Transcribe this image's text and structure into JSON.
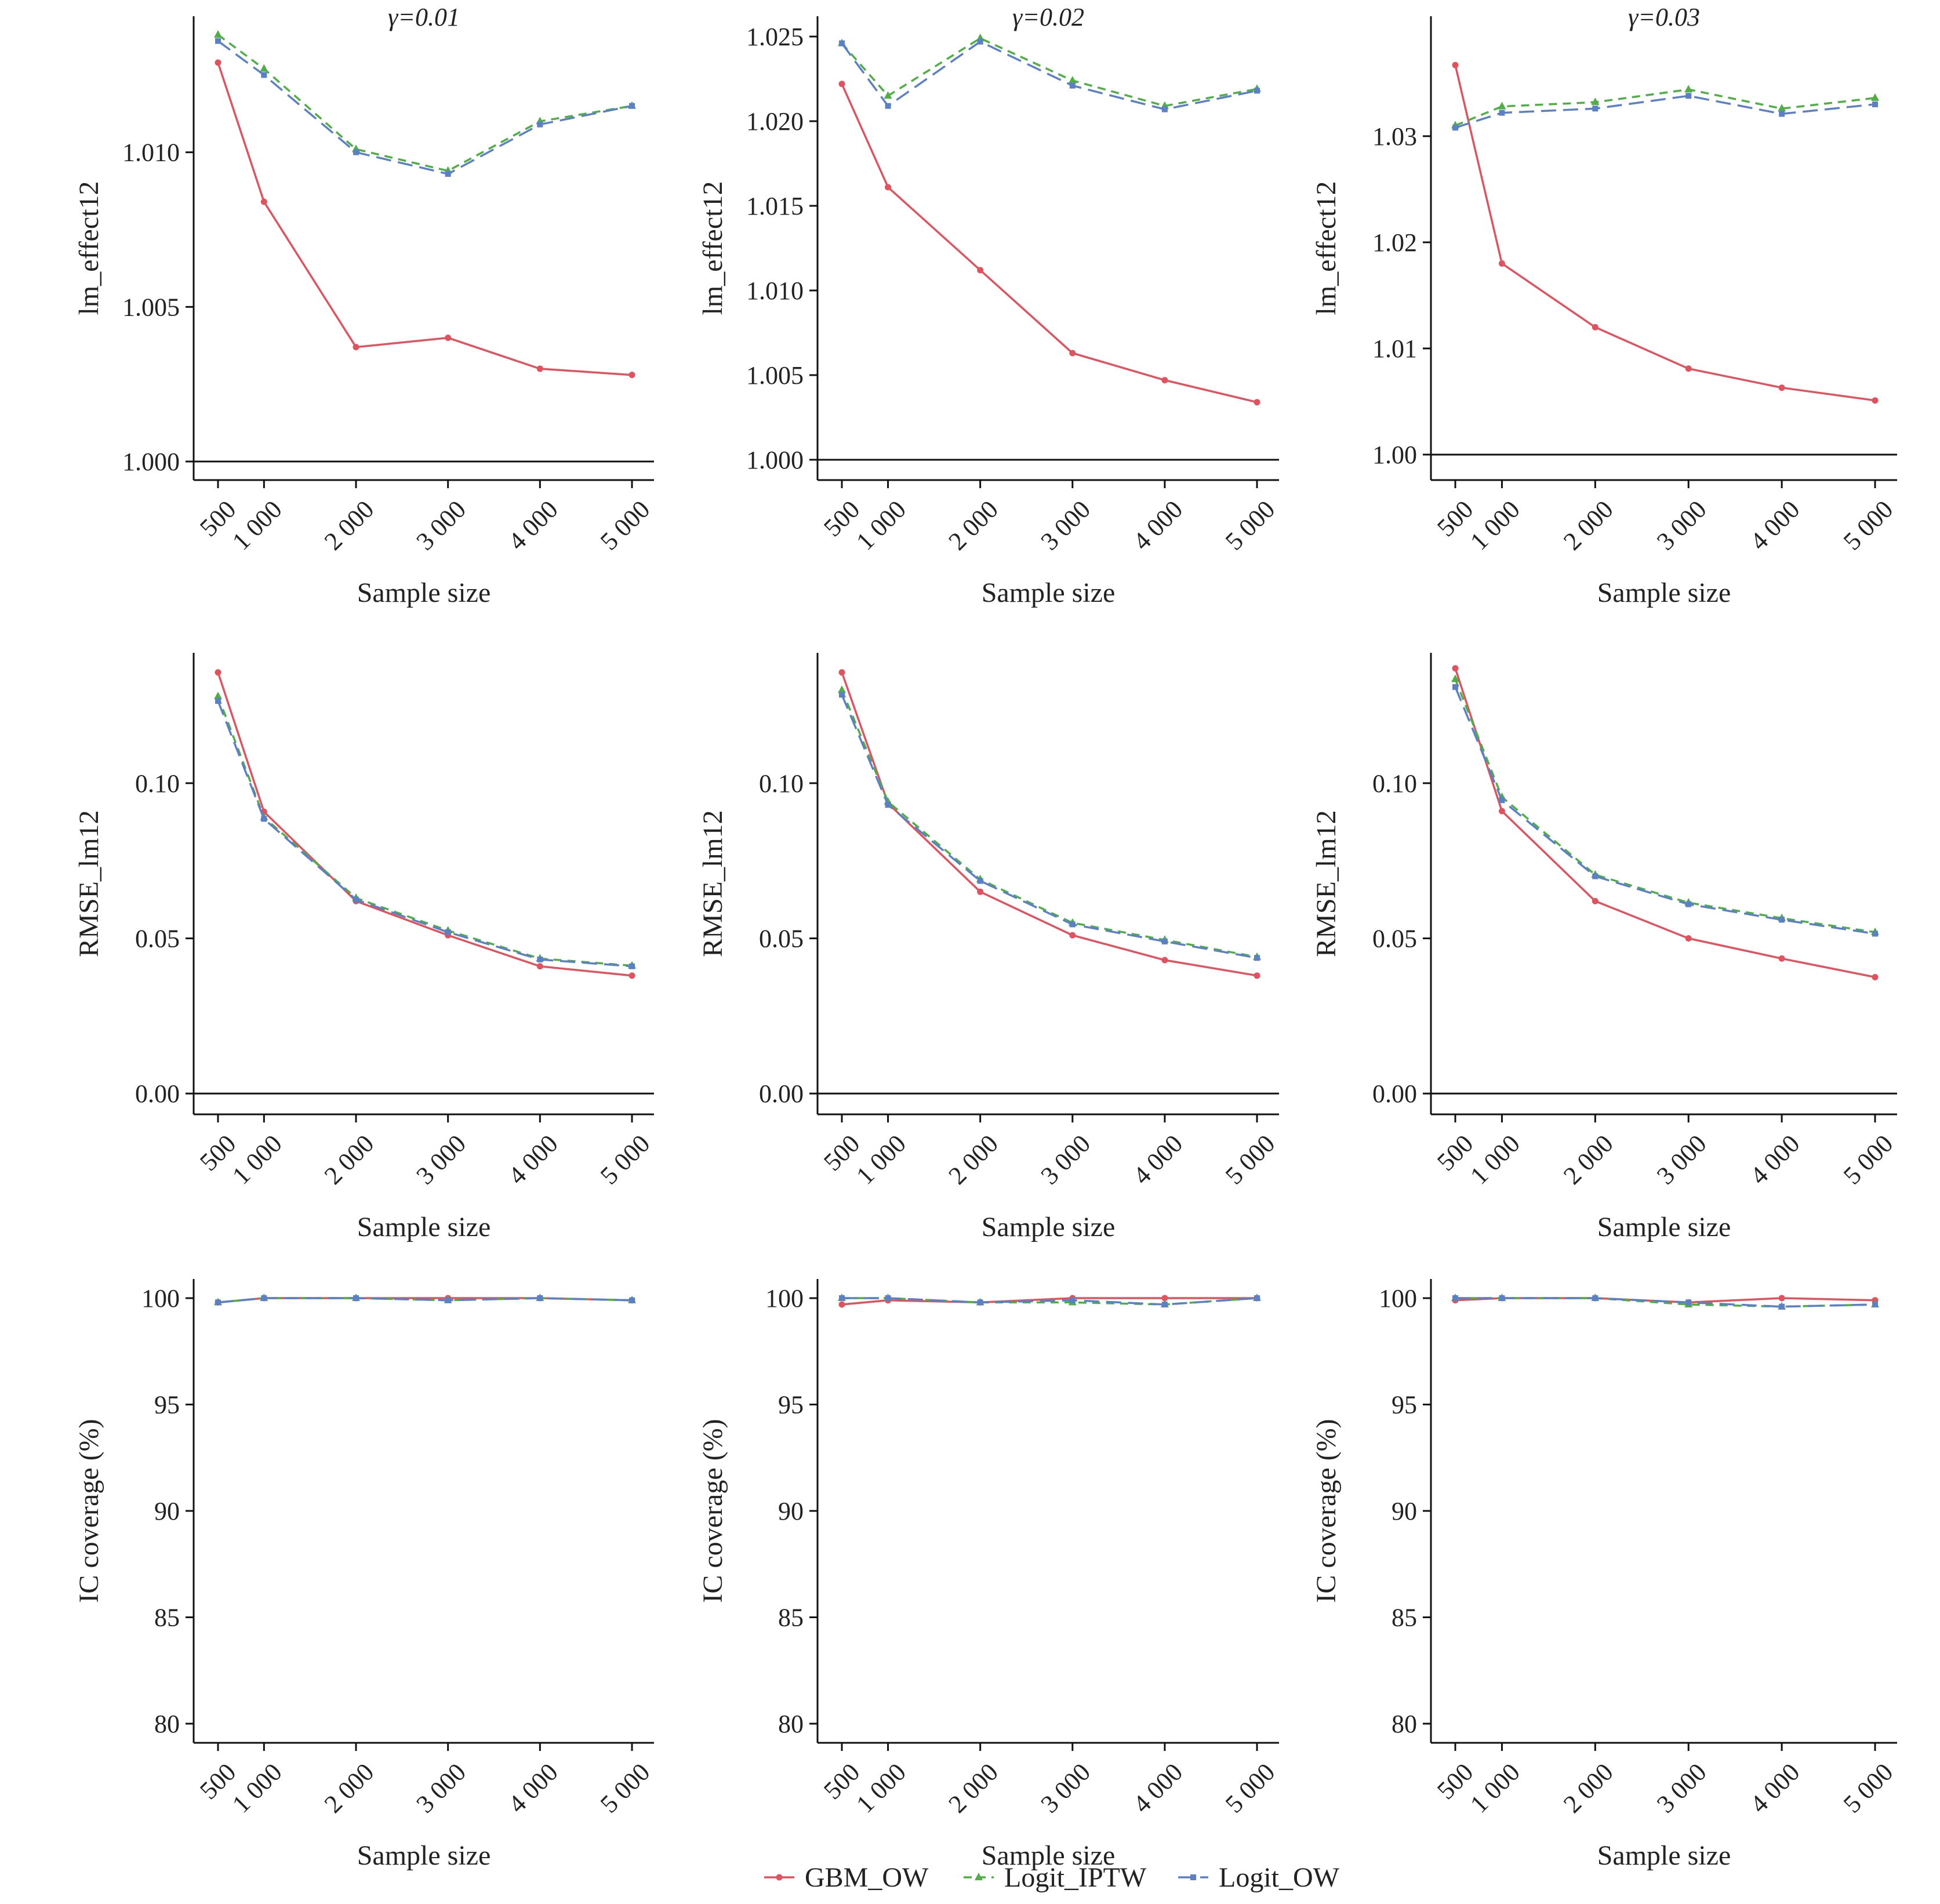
{
  "colors": {
    "GBM_OW": "#e0525e",
    "Logit_IPTW": "#4fae44",
    "Logit_OW": "#5b80c6"
  },
  "legend": {
    "placement": "bottom-center",
    "items": [
      {
        "series": "GBM_OW",
        "label": "GBM_OW",
        "dash": "solid",
        "marker": "circle"
      },
      {
        "series": "Logit_IPTW",
        "label": "Logit_IPTW",
        "dash": "dashed",
        "marker": "triangle"
      },
      {
        "series": "Logit_OW",
        "label": "Logit_OW",
        "dash": "long-dashed",
        "marker": "square"
      }
    ]
  },
  "chart_data": [
    {
      "type": "line",
      "row": 0,
      "col": 0,
      "title": "γ=0.01",
      "xlabel": "Sample size",
      "ylabel": "lm_effect12",
      "x": [
        500,
        1000,
        2000,
        3000,
        4000,
        5000
      ],
      "xticks": [
        "500",
        "1 000",
        "2 000",
        "3 000",
        "4 000",
        "5 000"
      ],
      "ylim": [
        0.9994,
        1.0144
      ],
      "yticks": [
        {
          "v": 1.0,
          "label": "1.000"
        },
        {
          "v": 1.005,
          "label": "1.005"
        },
        {
          "v": 1.01,
          "label": "1.010"
        }
      ],
      "baseline": 1.0,
      "series": [
        {
          "name": "GBM_OW",
          "values": [
            1.0129,
            1.0084,
            1.0037,
            1.004,
            1.003,
            1.0028
          ]
        },
        {
          "name": "Logit_IPTW",
          "values": [
            1.0138,
            1.0127,
            1.0101,
            1.0094,
            1.011,
            1.0115
          ]
        },
        {
          "name": "Logit_OW",
          "values": [
            1.0136,
            1.0125,
            1.01,
            1.0093,
            1.0109,
            1.0115
          ]
        }
      ]
    },
    {
      "type": "line",
      "row": 0,
      "col": 1,
      "title": "γ=0.02",
      "xlabel": "Sample size",
      "ylabel": "lm_effect12",
      "x": [
        500,
        1000,
        2000,
        3000,
        4000,
        5000
      ],
      "xticks": [
        "500",
        "1 000",
        "2 000",
        "3 000",
        "4 000",
        "5 000"
      ],
      "ylim": [
        0.9988,
        1.0262
      ],
      "yticks": [
        {
          "v": 1.0,
          "label": "1.000"
        },
        {
          "v": 1.005,
          "label": "1.005"
        },
        {
          "v": 1.01,
          "label": "1.010"
        },
        {
          "v": 1.015,
          "label": "1.015"
        },
        {
          "v": 1.02,
          "label": "1.020"
        },
        {
          "v": 1.025,
          "label": "1.025"
        }
      ],
      "baseline": 1.0,
      "series": [
        {
          "name": "GBM_OW",
          "values": [
            1.0222,
            1.0161,
            1.0112,
            1.0063,
            1.0047,
            1.0034
          ]
        },
        {
          "name": "Logit_IPTW",
          "values": [
            1.0246,
            1.0215,
            1.0249,
            1.0224,
            1.0209,
            1.0219
          ]
        },
        {
          "name": "Logit_OW",
          "values": [
            1.0246,
            1.0209,
            1.0247,
            1.0221,
            1.0207,
            1.0218
          ]
        }
      ]
    },
    {
      "type": "line",
      "row": 0,
      "col": 2,
      "title": "γ=0.03",
      "xlabel": "Sample size",
      "ylabel": "lm_effect12",
      "x": [
        500,
        1000,
        2000,
        3000,
        4000,
        5000
      ],
      "xticks": [
        "500",
        "1 000",
        "2 000",
        "3 000",
        "4 000",
        "5 000"
      ],
      "ylim": [
        0.9976,
        1.0413
      ],
      "yticks": [
        {
          "v": 1.0,
          "label": "1.00"
        },
        {
          "v": 1.01,
          "label": "1.01"
        },
        {
          "v": 1.02,
          "label": "1.02"
        },
        {
          "v": 1.03,
          "label": "1.03"
        }
      ],
      "baseline": 1.0,
      "series": [
        {
          "name": "GBM_OW",
          "values": [
            1.0367,
            1.018,
            1.012,
            1.0081,
            1.0063,
            1.0051
          ]
        },
        {
          "name": "Logit_IPTW",
          "values": [
            1.031,
            1.0328,
            1.0332,
            1.0344,
            1.0326,
            1.0336
          ]
        },
        {
          "name": "Logit_OW",
          "values": [
            1.0308,
            1.0322,
            1.0326,
            1.0338,
            1.0321,
            1.033
          ]
        }
      ]
    },
    {
      "type": "line",
      "row": 1,
      "col": 0,
      "title": "",
      "xlabel": "Sample size",
      "ylabel": "RMSE_lm12",
      "x": [
        500,
        1000,
        2000,
        3000,
        4000,
        5000
      ],
      "xticks": [
        "500",
        "1 000",
        "2 000",
        "3 000",
        "4 000",
        "5 000"
      ],
      "ylim": [
        -0.0067,
        0.142
      ],
      "yticks": [
        {
          "v": 0.0,
          "label": "0.00"
        },
        {
          "v": 0.05,
          "label": "0.05"
        },
        {
          "v": 0.1,
          "label": "0.10"
        }
      ],
      "baseline": 0.0,
      "series": [
        {
          "name": "GBM_OW",
          "values": [
            0.1357,
            0.0908,
            0.062,
            0.051,
            0.041,
            0.038
          ]
        },
        {
          "name": "Logit_IPTW",
          "values": [
            0.128,
            0.089,
            0.063,
            0.0525,
            0.0435,
            0.0412
          ]
        },
        {
          "name": "Logit_OW",
          "values": [
            0.1265,
            0.0885,
            0.0625,
            0.052,
            0.0432,
            0.041
          ]
        }
      ]
    },
    {
      "type": "line",
      "row": 1,
      "col": 1,
      "title": "",
      "xlabel": "Sample size",
      "ylabel": "RMSE_lm12",
      "x": [
        500,
        1000,
        2000,
        3000,
        4000,
        5000
      ],
      "xticks": [
        "500",
        "1 000",
        "2 000",
        "3 000",
        "4 000",
        "5 000"
      ],
      "ylim": [
        -0.0067,
        0.142
      ],
      "yticks": [
        {
          "v": 0.0,
          "label": "0.00"
        },
        {
          "v": 0.05,
          "label": "0.05"
        },
        {
          "v": 0.1,
          "label": "0.10"
        }
      ],
      "baseline": 0.0,
      "series": [
        {
          "name": "GBM_OW",
          "values": [
            0.1357,
            0.0935,
            0.065,
            0.051,
            0.043,
            0.038
          ]
        },
        {
          "name": "Logit_IPTW",
          "values": [
            0.13,
            0.094,
            0.069,
            0.055,
            0.0495,
            0.044
          ]
        },
        {
          "name": "Logit_OW",
          "values": [
            0.1285,
            0.093,
            0.0685,
            0.0545,
            0.049,
            0.0437
          ]
        }
      ]
    },
    {
      "type": "line",
      "row": 1,
      "col": 2,
      "title": "",
      "xlabel": "Sample size",
      "ylabel": "RMSE_lm12",
      "x": [
        500,
        1000,
        2000,
        3000,
        4000,
        5000
      ],
      "xticks": [
        "500",
        "1 000",
        "2 000",
        "3 000",
        "4 000",
        "5 000"
      ],
      "ylim": [
        -0.0067,
        0.142
      ],
      "yticks": [
        {
          "v": 0.0,
          "label": "0.00"
        },
        {
          "v": 0.05,
          "label": "0.05"
        },
        {
          "v": 0.1,
          "label": "0.10"
        }
      ],
      "baseline": 0.0,
      "series": [
        {
          "name": "GBM_OW",
          "values": [
            0.137,
            0.091,
            0.062,
            0.05,
            0.0435,
            0.0375
          ]
        },
        {
          "name": "Logit_IPTW",
          "values": [
            0.1335,
            0.0955,
            0.0705,
            0.0615,
            0.0565,
            0.052
          ]
        },
        {
          "name": "Logit_OW",
          "values": [
            0.131,
            0.0945,
            0.07,
            0.061,
            0.056,
            0.0515
          ]
        }
      ]
    },
    {
      "type": "line",
      "row": 2,
      "col": 0,
      "title": "",
      "xlabel": "Sample size",
      "ylabel": "IC coverage (%)",
      "x": [
        500,
        1000,
        2000,
        3000,
        4000,
        5000
      ],
      "xticks": [
        "500",
        "1 000",
        "2 000",
        "3 000",
        "4 000",
        "5 000"
      ],
      "ylim": [
        79.1,
        100.9
      ],
      "yticks": [
        {
          "v": 80,
          "label": "80"
        },
        {
          "v": 85,
          "label": "85"
        },
        {
          "v": 90,
          "label": "90"
        },
        {
          "v": 95,
          "label": "95"
        },
        {
          "v": 100,
          "label": "100"
        }
      ],
      "series": [
        {
          "name": "GBM_OW",
          "values": [
            99.8,
            100.0,
            100.0,
            100.0,
            100.0,
            99.9
          ]
        },
        {
          "name": "Logit_IPTW",
          "values": [
            99.8,
            100.0,
            100.0,
            99.9,
            100.0,
            99.9
          ]
        },
        {
          "name": "Logit_OW",
          "values": [
            99.8,
            100.0,
            100.0,
            99.9,
            100.0,
            99.9
          ]
        }
      ]
    },
    {
      "type": "line",
      "row": 2,
      "col": 1,
      "title": "",
      "xlabel": "Sample size",
      "ylabel": "IC coverage (%)",
      "x": [
        500,
        1000,
        2000,
        3000,
        4000,
        5000
      ],
      "xticks": [
        "500",
        "1 000",
        "2 000",
        "3 000",
        "4 000",
        "5 000"
      ],
      "ylim": [
        79.1,
        100.9
      ],
      "yticks": [
        {
          "v": 80,
          "label": "80"
        },
        {
          "v": 85,
          "label": "85"
        },
        {
          "v": 90,
          "label": "90"
        },
        {
          "v": 95,
          "label": "95"
        },
        {
          "v": 100,
          "label": "100"
        }
      ],
      "series": [
        {
          "name": "GBM_OW",
          "values": [
            99.7,
            99.9,
            99.8,
            100.0,
            100.0,
            100.0
          ]
        },
        {
          "name": "Logit_IPTW",
          "values": [
            100.0,
            100.0,
            99.8,
            99.8,
            99.7,
            100.0
          ]
        },
        {
          "name": "Logit_OW",
          "values": [
            100.0,
            100.0,
            99.8,
            99.9,
            99.7,
            100.0
          ]
        }
      ]
    },
    {
      "type": "line",
      "row": 2,
      "col": 2,
      "title": "",
      "xlabel": "Sample size",
      "ylabel": "IC coverage (%)",
      "x": [
        500,
        1000,
        2000,
        3000,
        4000,
        5000
      ],
      "xticks": [
        "500",
        "1 000",
        "2 000",
        "3 000",
        "4 000",
        "5 000"
      ],
      "ylim": [
        79.1,
        100.9
      ],
      "yticks": [
        {
          "v": 80,
          "label": "80"
        },
        {
          "v": 85,
          "label": "85"
        },
        {
          "v": 90,
          "label": "90"
        },
        {
          "v": 95,
          "label": "95"
        },
        {
          "v": 100,
          "label": "100"
        }
      ],
      "series": [
        {
          "name": "GBM_OW",
          "values": [
            99.9,
            100.0,
            100.0,
            99.8,
            100.0,
            99.9
          ]
        },
        {
          "name": "Logit_IPTW",
          "values": [
            100.0,
            100.0,
            100.0,
            99.7,
            99.6,
            99.7
          ]
        },
        {
          "name": "Logit_OW",
          "values": [
            100.0,
            100.0,
            100.0,
            99.8,
            99.6,
            99.7
          ]
        }
      ]
    }
  ]
}
